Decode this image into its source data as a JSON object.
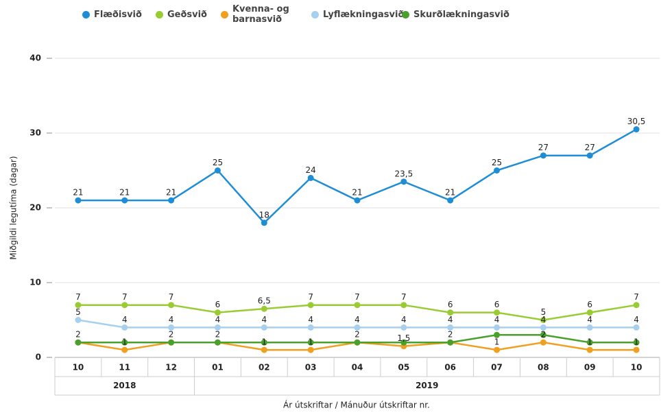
{
  "chart_data": {
    "type": "line",
    "y_label": "Miðgildi legutíma (dagar)",
    "x_label": "Ár útskriftar / Mánuður útskriftar nr.",
    "categories": [
      "10",
      "11",
      "12",
      "01",
      "02",
      "03",
      "04",
      "05",
      "06",
      "07",
      "08",
      "09",
      "10"
    ],
    "groups": [
      {
        "label": "2018",
        "count": 3
      },
      {
        "label": "2019",
        "count": 10
      }
    ],
    "ylim": [
      0,
      40
    ],
    "yticks": [
      0,
      10,
      20,
      30,
      40
    ],
    "grid": true,
    "legend": "top",
    "series": [
      {
        "name": "Flæðisvið",
        "color": "#1f8dd6",
        "show_labels": true,
        "values": [
          21,
          21,
          21,
          25,
          18,
          24,
          21,
          23.5,
          21,
          25,
          27,
          27,
          30.5
        ],
        "value_labels": [
          "21",
          "21",
          "21",
          "25",
          "18",
          "24",
          "21",
          "23,5",
          "21",
          "25",
          "27",
          "27",
          "30,5"
        ]
      },
      {
        "name": "Geðsvið",
        "color": "#99cc33",
        "show_labels": true,
        "values": [
          7,
          7,
          7,
          6,
          6.5,
          7,
          7,
          7,
          6,
          6,
          5,
          6,
          7
        ],
        "value_labels": [
          "7",
          "7",
          "7",
          "6",
          "6,5",
          "7",
          "7",
          "7",
          "6",
          "6",
          "5",
          "6",
          "7"
        ]
      },
      {
        "name": "Kvenna- og barnasvið",
        "color": "#f0a020",
        "show_labels": true,
        "values": [
          2,
          1,
          2,
          2,
          1,
          1,
          2,
          1.5,
          2,
          1,
          2,
          1,
          1
        ],
        "value_labels": [
          "2",
          "1",
          "2",
          "2",
          "1",
          "1",
          "2",
          "1,5",
          "2",
          "1",
          "2",
          "1",
          "1"
        ]
      },
      {
        "name": "Lyflækningasvið",
        "color": "#a6d0ee",
        "show_labels": true,
        "values": [
          5,
          4,
          4,
          4,
          4,
          4,
          4,
          4,
          4,
          4,
          4,
          4,
          4
        ]
      },
      {
        "name": "Skurðlækningasvið",
        "color": "#4aa02c",
        "show_labels": false,
        "values": [
          2,
          2,
          2,
          2,
          2,
          2,
          2,
          2,
          2,
          3,
          3,
          2,
          2
        ]
      }
    ]
  }
}
